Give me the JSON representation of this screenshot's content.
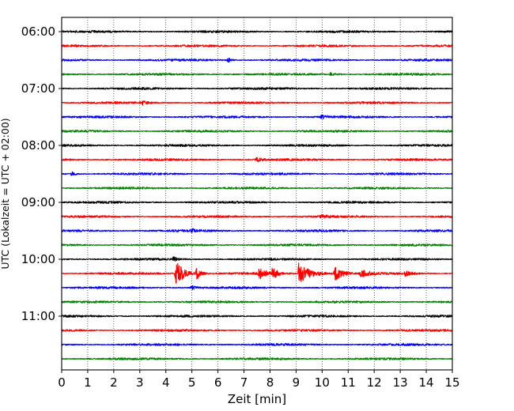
{
  "chart_data": {
    "type": "line",
    "title": "",
    "xlabel": "Zeit  [min]",
    "ylabel": "UTC (Lokalzeit = UTC + 02:00)",
    "xlim": [
      0,
      15
    ],
    "x_ticks": [
      "0",
      "1",
      "2",
      "3",
      "4",
      "5",
      "6",
      "7",
      "8",
      "9",
      "10",
      "11",
      "12",
      "13",
      "14",
      "15"
    ],
    "y_ticks": [
      {
        "label": "06:00",
        "row": 0
      },
      {
        "label": "07:00",
        "row": 4
      },
      {
        "label": "08:00",
        "row": 8
      },
      {
        "label": "09:00",
        "row": 12
      },
      {
        "label": "10:00",
        "row": 16
      },
      {
        "label": "11:00",
        "row": 20
      }
    ],
    "grid": {
      "x": true,
      "style": "dotted"
    },
    "trace_colors": [
      "#000000",
      "#ff0000",
      "#0000ff",
      "#008000"
    ],
    "row_minutes": 15,
    "rows": [
      {
        "start": "06:00",
        "color": "#000000",
        "events": []
      },
      {
        "start": "06:15",
        "color": "#ff0000",
        "events": []
      },
      {
        "start": "06:30",
        "color": "#0000ff",
        "events": [
          {
            "t": 6.4,
            "amp": 0.35,
            "dur": 0.4
          }
        ]
      },
      {
        "start": "06:45",
        "color": "#008000",
        "events": [
          {
            "t": 10.3,
            "amp": 0.25,
            "dur": 0.6
          }
        ]
      },
      {
        "start": "07:00",
        "color": "#000000",
        "events": []
      },
      {
        "start": "07:15",
        "color": "#ff0000",
        "events": [
          {
            "t": 3.1,
            "amp": 0.3,
            "dur": 0.5
          }
        ]
      },
      {
        "start": "07:30",
        "color": "#0000ff",
        "events": [
          {
            "t": 10.0,
            "amp": 0.3,
            "dur": 0.5
          }
        ]
      },
      {
        "start": "07:45",
        "color": "#008000",
        "events": []
      },
      {
        "start": "08:00",
        "color": "#000000",
        "events": []
      },
      {
        "start": "08:15",
        "color": "#ff0000",
        "events": [
          {
            "t": 7.5,
            "amp": 0.25,
            "dur": 0.8
          }
        ]
      },
      {
        "start": "08:30",
        "color": "#0000ff",
        "events": [
          {
            "t": 0.4,
            "amp": 0.3,
            "dur": 0.4
          }
        ]
      },
      {
        "start": "08:45",
        "color": "#008000",
        "events": []
      },
      {
        "start": "09:00",
        "color": "#000000",
        "events": []
      },
      {
        "start": "09:15",
        "color": "#ff0000",
        "events": [
          {
            "t": 10.0,
            "amp": 0.3,
            "dur": 0.5
          }
        ]
      },
      {
        "start": "09:30",
        "color": "#0000ff",
        "events": [
          {
            "t": 5.0,
            "amp": 0.25,
            "dur": 0.4
          }
        ]
      },
      {
        "start": "09:45",
        "color": "#008000",
        "events": []
      },
      {
        "start": "10:00",
        "color": "#000000",
        "events": [
          {
            "t": 4.3,
            "amp": 0.3,
            "dur": 0.4
          }
        ]
      },
      {
        "start": "10:15",
        "color": "#ff0000",
        "events": [
          {
            "t": 4.4,
            "amp": 2.1,
            "dur": 0.8
          },
          {
            "t": 5.2,
            "amp": 0.9,
            "dur": 0.5
          },
          {
            "t": 7.6,
            "amp": 0.8,
            "dur": 0.7
          },
          {
            "t": 8.1,
            "amp": 0.9,
            "dur": 0.5
          },
          {
            "t": 9.1,
            "amp": 1.6,
            "dur": 1.3
          },
          {
            "t": 10.5,
            "amp": 1.2,
            "dur": 0.8
          },
          {
            "t": 11.5,
            "amp": 0.5,
            "dur": 1.0
          },
          {
            "t": 13.2,
            "amp": 0.4,
            "dur": 0.8
          }
        ]
      },
      {
        "start": "10:30",
        "color": "#0000ff",
        "events": [
          {
            "t": 5.0,
            "amp": 0.3,
            "dur": 0.5
          }
        ]
      },
      {
        "start": "10:45",
        "color": "#008000",
        "events": []
      },
      {
        "start": "11:00",
        "color": "#000000",
        "events": []
      },
      {
        "start": "11:15",
        "color": "#ff0000",
        "events": []
      },
      {
        "start": "11:30",
        "color": "#0000ff",
        "events": []
      },
      {
        "start": "11:45",
        "color": "#008000",
        "events": []
      }
    ]
  }
}
